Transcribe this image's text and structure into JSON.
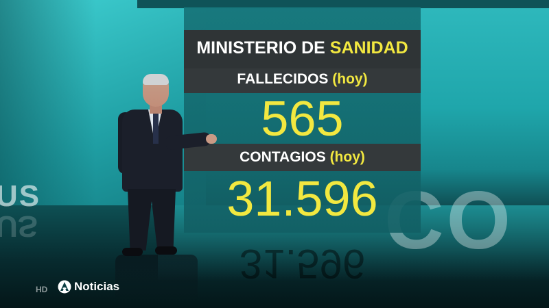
{
  "panel": {
    "title_prefix": "MINISTERIO DE",
    "title_highlight": "SANIDAD",
    "stat1": {
      "label": "FALLECIDOS",
      "qualifier": "(hoy)",
      "value": "565"
    },
    "stat2": {
      "label": "CONTAGIOS",
      "qualifier": "(hoy)",
      "value": "31.596"
    }
  },
  "background": {
    "left_text": "US",
    "right_text": "CO"
  },
  "footer": {
    "hd_badge": "HD",
    "channel_name": "Noticias",
    "logo_icon": "antena3-logo-icon"
  },
  "colors": {
    "accent_yellow": "#f2e840",
    "band_dark": "#34393b",
    "studio_teal": "#1fa6ab"
  }
}
